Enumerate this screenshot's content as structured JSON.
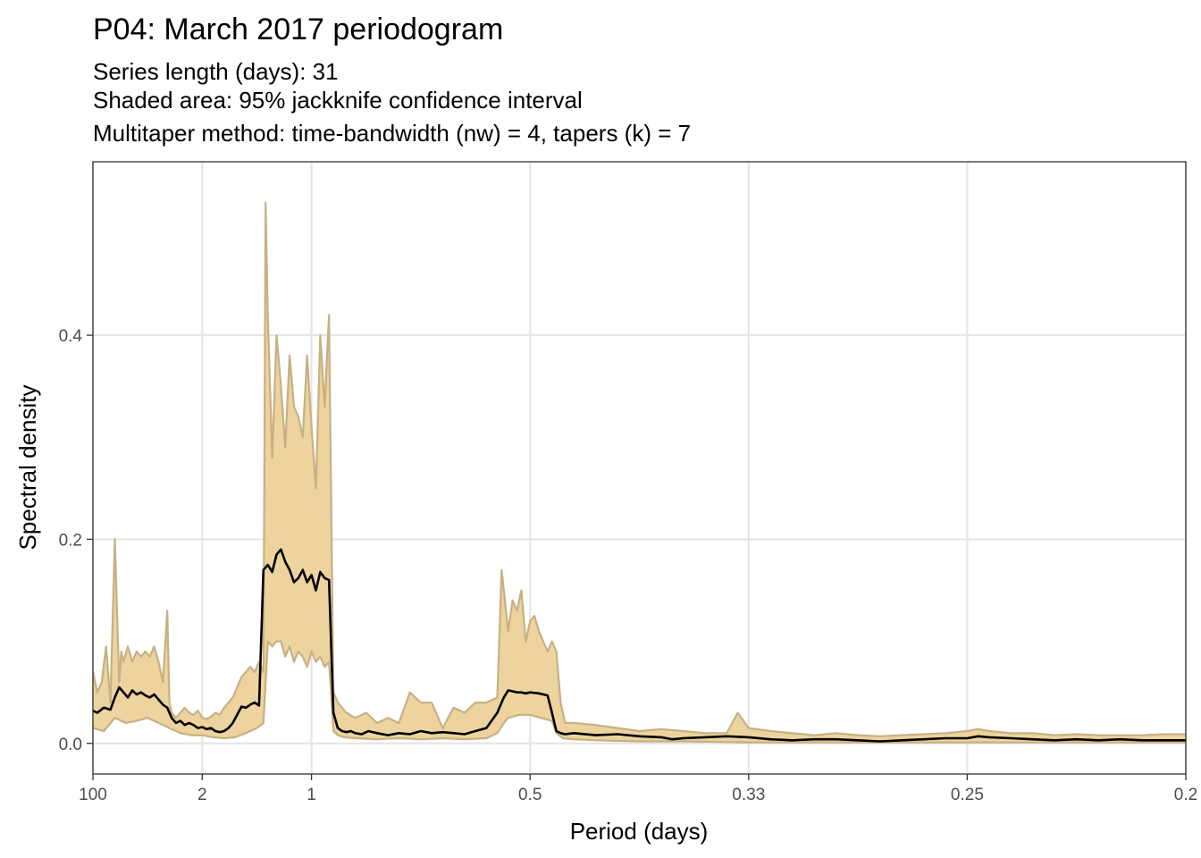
{
  "chart_data": {
    "type": "area",
    "title": "P04: March 2017 periodogram",
    "subtitle_lines": [
      "Series length (days): 31",
      "Shaded area: 95% jackknife confidence interval",
      "Multitaper method: time-bandwidth (nw) = 4, tapers (k) = 7"
    ],
    "xlabel": "Period (days)",
    "ylabel": "Spectral density",
    "x_axis_quantity": "frequency (cycles per day)",
    "xlim": [
      0.0,
      5.0
    ],
    "ylim": [
      -0.03,
      0.57
    ],
    "x_ticks": [
      {
        "value": 0.0,
        "label": "100"
      },
      {
        "value": 0.5,
        "label": "2"
      },
      {
        "value": 1.0,
        "label": "1"
      },
      {
        "value": 2.0,
        "label": "0.5"
      },
      {
        "value": 3.0,
        "label": "0.33"
      },
      {
        "value": 4.0,
        "label": "0.25"
      },
      {
        "value": 5.0,
        "label": "0.2"
      }
    ],
    "y_ticks": [
      {
        "value": 0.0,
        "label": "0.0"
      },
      {
        "value": 0.2,
        "label": "0.2"
      },
      {
        "value": 0.4,
        "label": "0.4"
      }
    ],
    "grid": true,
    "colors": {
      "band_fill": "#EDD39D",
      "band_edge": "#C7B083",
      "line": "#000000",
      "grid": "#E5E5E5",
      "frame": "#333333"
    },
    "series": [
      {
        "role": "estimate",
        "x": [
          0.0,
          0.02,
          0.05,
          0.08,
          0.1,
          0.12,
          0.14,
          0.16,
          0.18,
          0.2,
          0.22,
          0.24,
          0.26,
          0.28,
          0.3,
          0.32,
          0.34,
          0.36,
          0.38,
          0.4,
          0.42,
          0.44,
          0.46,
          0.48,
          0.5,
          0.52,
          0.54,
          0.56,
          0.58,
          0.6,
          0.62,
          0.64,
          0.66,
          0.68,
          0.7,
          0.72,
          0.74,
          0.76,
          0.78,
          0.8,
          0.82,
          0.84,
          0.86,
          0.88,
          0.9,
          0.92,
          0.94,
          0.96,
          0.98,
          1.0,
          1.02,
          1.04,
          1.06,
          1.08,
          1.1,
          1.12,
          1.14,
          1.16,
          1.18,
          1.2,
          1.23,
          1.26,
          1.3,
          1.35,
          1.4,
          1.45,
          1.5,
          1.55,
          1.6,
          1.65,
          1.7,
          1.75,
          1.8,
          1.85,
          1.88,
          1.9,
          1.92,
          1.94,
          1.96,
          1.98,
          2.0,
          2.04,
          2.08,
          2.1,
          2.12,
          2.14,
          2.16,
          2.2,
          2.3,
          2.4,
          2.5,
          2.6,
          2.65,
          2.7,
          2.8,
          2.9,
          3.0,
          3.1,
          3.2,
          3.3,
          3.4,
          3.5,
          3.6,
          3.7,
          3.8,
          3.9,
          4.0,
          4.05,
          4.1,
          4.2,
          4.3,
          4.4,
          4.5,
          4.6,
          4.7,
          4.8,
          4.9,
          5.0
        ],
        "values": [
          0.032,
          0.03,
          0.035,
          0.033,
          0.045,
          0.055,
          0.05,
          0.045,
          0.052,
          0.048,
          0.05,
          0.047,
          0.045,
          0.048,
          0.043,
          0.038,
          0.035,
          0.025,
          0.02,
          0.022,
          0.018,
          0.02,
          0.018,
          0.015,
          0.016,
          0.014,
          0.015,
          0.012,
          0.011,
          0.012,
          0.015,
          0.02,
          0.028,
          0.036,
          0.035,
          0.038,
          0.04,
          0.037,
          0.17,
          0.175,
          0.168,
          0.185,
          0.19,
          0.178,
          0.17,
          0.158,
          0.162,
          0.17,
          0.158,
          0.165,
          0.15,
          0.168,
          0.162,
          0.16,
          0.03,
          0.015,
          0.012,
          0.011,
          0.012,
          0.01,
          0.009,
          0.012,
          0.01,
          0.008,
          0.01,
          0.009,
          0.012,
          0.01,
          0.011,
          0.01,
          0.009,
          0.012,
          0.015,
          0.03,
          0.045,
          0.052,
          0.051,
          0.05,
          0.05,
          0.049,
          0.05,
          0.049,
          0.047,
          0.03,
          0.012,
          0.01,
          0.009,
          0.01,
          0.008,
          0.009,
          0.007,
          0.006,
          0.004,
          0.005,
          0.006,
          0.007,
          0.006,
          0.004,
          0.003,
          0.004,
          0.004,
          0.003,
          0.002,
          0.003,
          0.004,
          0.005,
          0.005,
          0.007,
          0.006,
          0.005,
          0.004,
          0.003,
          0.004,
          0.003,
          0.004,
          0.003,
          0.003,
          0.003
        ]
      },
      {
        "role": "ci_upper",
        "x": [
          0.0,
          0.02,
          0.04,
          0.06,
          0.08,
          0.1,
          0.12,
          0.13,
          0.14,
          0.16,
          0.18,
          0.2,
          0.22,
          0.24,
          0.26,
          0.28,
          0.3,
          0.32,
          0.34,
          0.35,
          0.36,
          0.38,
          0.4,
          0.42,
          0.44,
          0.46,
          0.48,
          0.5,
          0.52,
          0.54,
          0.56,
          0.58,
          0.6,
          0.62,
          0.64,
          0.66,
          0.68,
          0.7,
          0.72,
          0.74,
          0.76,
          0.78,
          0.79,
          0.8,
          0.82,
          0.84,
          0.86,
          0.88,
          0.9,
          0.92,
          0.94,
          0.96,
          0.98,
          1.0,
          1.02,
          1.04,
          1.06,
          1.08,
          1.1,
          1.12,
          1.14,
          1.16,
          1.2,
          1.25,
          1.3,
          1.35,
          1.4,
          1.45,
          1.5,
          1.55,
          1.6,
          1.65,
          1.7,
          1.75,
          1.8,
          1.85,
          1.87,
          1.9,
          1.92,
          1.94,
          1.96,
          1.98,
          2.0,
          2.02,
          2.04,
          2.06,
          2.08,
          2.1,
          2.12,
          2.14,
          2.16,
          2.2,
          2.3,
          2.4,
          2.5,
          2.6,
          2.7,
          2.8,
          2.9,
          2.95,
          3.0,
          3.1,
          3.2,
          3.3,
          3.4,
          3.5,
          3.6,
          3.7,
          3.8,
          3.9,
          4.0,
          4.05,
          4.1,
          4.2,
          4.3,
          4.4,
          4.5,
          4.6,
          4.7,
          4.8,
          4.9,
          5.0
        ],
        "values": [
          0.07,
          0.05,
          0.06,
          0.095,
          0.04,
          0.2,
          0.06,
          0.09,
          0.08,
          0.095,
          0.08,
          0.09,
          0.085,
          0.09,
          0.085,
          0.095,
          0.08,
          0.06,
          0.13,
          0.04,
          0.03,
          0.025,
          0.03,
          0.035,
          0.03,
          0.028,
          0.032,
          0.025,
          0.024,
          0.026,
          0.03,
          0.028,
          0.035,
          0.04,
          0.045,
          0.055,
          0.065,
          0.07,
          0.075,
          0.07,
          0.08,
          0.07,
          0.53,
          0.42,
          0.28,
          0.4,
          0.35,
          0.29,
          0.38,
          0.33,
          0.32,
          0.3,
          0.38,
          0.31,
          0.25,
          0.4,
          0.33,
          0.42,
          0.05,
          0.04,
          0.035,
          0.03,
          0.025,
          0.03,
          0.02,
          0.025,
          0.02,
          0.05,
          0.04,
          0.04,
          0.015,
          0.035,
          0.03,
          0.04,
          0.04,
          0.045,
          0.17,
          0.11,
          0.14,
          0.13,
          0.15,
          0.1,
          0.12,
          0.125,
          0.11,
          0.1,
          0.09,
          0.1,
          0.09,
          0.04,
          0.02,
          0.02,
          0.018,
          0.015,
          0.012,
          0.014,
          0.012,
          0.01,
          0.01,
          0.03,
          0.015,
          0.012,
          0.01,
          0.008,
          0.01,
          0.008,
          0.007,
          0.008,
          0.009,
          0.01,
          0.012,
          0.014,
          0.012,
          0.01,
          0.01,
          0.008,
          0.009,
          0.008,
          0.008,
          0.008,
          0.009,
          0.009
        ]
      },
      {
        "role": "ci_lower",
        "x": [
          0.0,
          0.05,
          0.1,
          0.15,
          0.2,
          0.25,
          0.3,
          0.35,
          0.4,
          0.45,
          0.5,
          0.55,
          0.6,
          0.65,
          0.7,
          0.75,
          0.78,
          0.8,
          0.82,
          0.84,
          0.86,
          0.88,
          0.9,
          0.92,
          0.94,
          0.96,
          0.98,
          1.0,
          1.02,
          1.04,
          1.06,
          1.08,
          1.1,
          1.12,
          1.15,
          1.2,
          1.3,
          1.4,
          1.5,
          1.6,
          1.7,
          1.8,
          1.85,
          1.88,
          1.9,
          1.95,
          2.0,
          2.05,
          2.1,
          2.12,
          2.15,
          2.2,
          2.3,
          2.5,
          2.7,
          3.0,
          3.3,
          3.5,
          3.7,
          4.0,
          4.3,
          4.6,
          5.0
        ],
        "values": [
          0.015,
          0.012,
          0.025,
          0.02,
          0.022,
          0.025,
          0.02,
          0.015,
          0.01,
          0.008,
          0.008,
          0.006,
          0.005,
          0.006,
          0.01,
          0.015,
          0.02,
          0.1,
          0.095,
          0.1,
          0.1,
          0.085,
          0.095,
          0.08,
          0.09,
          0.085,
          0.075,
          0.09,
          0.08,
          0.085,
          0.075,
          0.08,
          0.012,
          0.008,
          0.006,
          0.005,
          0.004,
          0.005,
          0.004,
          0.005,
          0.004,
          0.005,
          0.01,
          0.02,
          0.025,
          0.028,
          0.028,
          0.025,
          0.022,
          0.01,
          0.005,
          0.004,
          0.003,
          0.002,
          0.002,
          0.001,
          0.001,
          0.001,
          0.001,
          0.001,
          0.001,
          0.001,
          0.001
        ]
      }
    ]
  }
}
